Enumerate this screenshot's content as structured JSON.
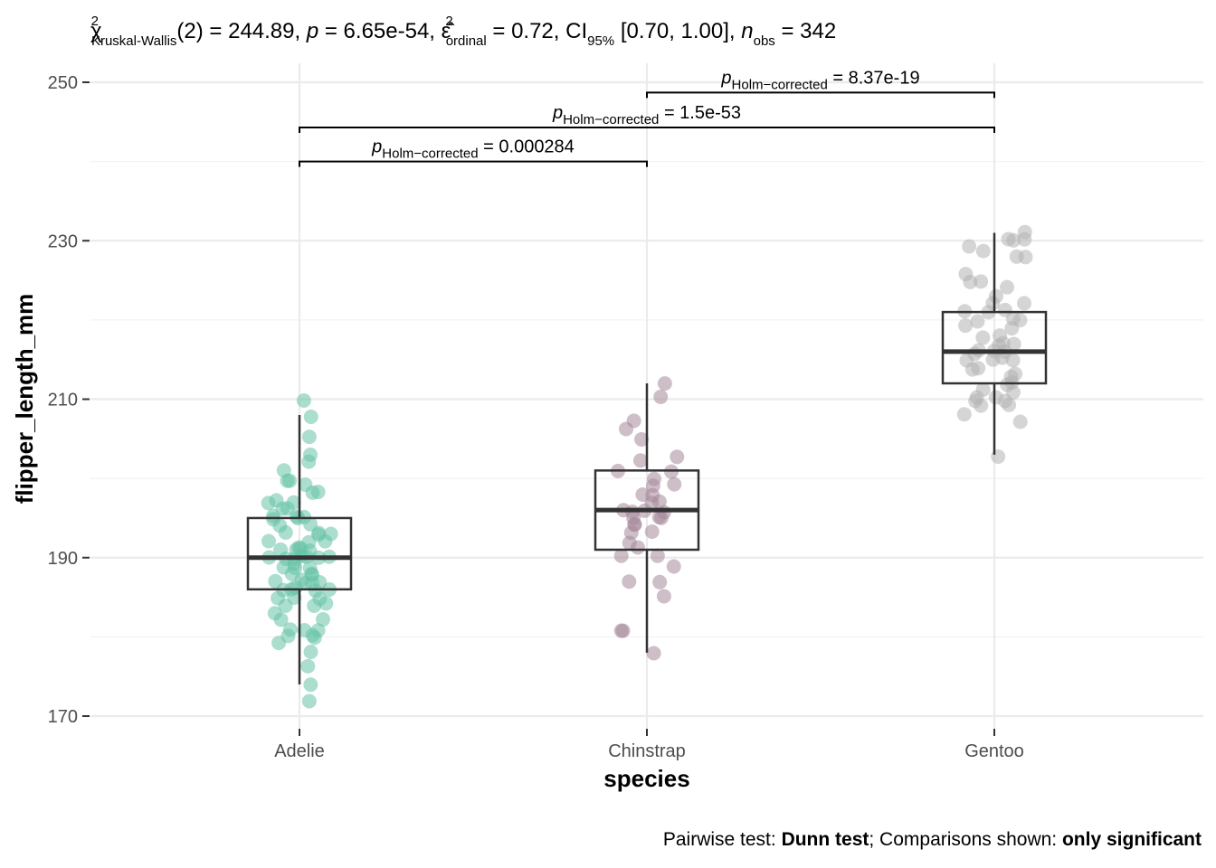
{
  "chart_data": {
    "type": "box-violin-jitter",
    "title_parts": {
      "stat_symbol": "χ",
      "stat_sup": "2",
      "stat_sub": "Kruskal-Wallis",
      "df_text": "(2) = 244.89, ",
      "p_symbol": "p",
      "p_text": " = 6.65e-54, ",
      "effect_symbol": "ε̂",
      "effect_sup": "2",
      "effect_sub": "ordinal",
      "effect_text": " = 0.72, CI",
      "ci_sub": "95%",
      "ci_text": " [0.70, 1.00], ",
      "n_symbol": "n",
      "n_sub": "obs",
      "n_text": " = 342"
    },
    "xlabel": "species",
    "ylabel": "flipper_length_mm",
    "ylim": [
      168,
      251
    ],
    "yticks": [
      170,
      190,
      210,
      230,
      250
    ],
    "categories": [
      "Adelie",
      "Chinstrap",
      "Gentoo"
    ],
    "colors": {
      "Adelie": "#66C2A5",
      "Chinstrap": "#A6889A",
      "Gentoo": "#B3B3B3",
      "box": "#333333"
    },
    "boxes": [
      {
        "name": "Adelie",
        "lower_whisker": 174,
        "q1": 186,
        "median": 190,
        "q3": 195,
        "upper_whisker": 208
      },
      {
        "name": "Chinstrap",
        "lower_whisker": 178,
        "q1": 191,
        "median": 196,
        "q3": 201,
        "upper_whisker": 212
      },
      {
        "name": "Gentoo",
        "lower_whisker": 203,
        "q1": 212,
        "median": 216,
        "q3": 221,
        "upper_whisker": 231
      }
    ],
    "points": {
      "Adelie": [
        172,
        176,
        178,
        179,
        180,
        180,
        181,
        181,
        182,
        182,
        183,
        184,
        184,
        184,
        185,
        185,
        185,
        186,
        186,
        186,
        186,
        187,
        187,
        187,
        187,
        188,
        188,
        188,
        189,
        189,
        189,
        189,
        190,
        190,
        190,
        190,
        190,
        190,
        191,
        191,
        191,
        191,
        192,
        192,
        192,
        193,
        193,
        193,
        194,
        194,
        195,
        195,
        195,
        195,
        196,
        196,
        197,
        197,
        198,
        198,
        199,
        200,
        201,
        202,
        203,
        205,
        208,
        210,
        174,
        180,
        181,
        186,
        187,
        190,
        191,
        193,
        195,
        197,
        200
      ],
      "Chinstrap": [
        178,
        181,
        181,
        185,
        187,
        187,
        189,
        190,
        191,
        192,
        193,
        193,
        194,
        195,
        195,
        195,
        196,
        196,
        196,
        196,
        197,
        197,
        198,
        198,
        199,
        200,
        201,
        201,
        202,
        203,
        205,
        206,
        207,
        210,
        212,
        190,
        194,
        199
      ],
      "Gentoo": [
        203,
        207,
        208,
        209,
        209,
        210,
        210,
        210,
        211,
        211,
        212,
        212,
        213,
        213,
        214,
        214,
        215,
        215,
        215,
        216,
        216,
        216,
        217,
        217,
        217,
        218,
        218,
        219,
        219,
        220,
        220,
        221,
        221,
        222,
        222,
        223,
        224,
        225,
        226,
        228,
        229,
        229,
        230,
        230,
        230,
        231,
        210,
        215,
        216,
        220,
        221,
        225,
        228
      ]
    },
    "comparisons": [
      {
        "group1": "Adelie",
        "group2": "Chinstrap",
        "y": 240,
        "p_symbol": "p",
        "p_sub": "Holm−corrected",
        "p_text": " = 0.000284"
      },
      {
        "group1": "Adelie",
        "group2": "Gentoo",
        "y": 244.3,
        "p_symbol": "p",
        "p_sub": "Holm−corrected",
        "p_text": " = 1.5e-53"
      },
      {
        "group1": "Chinstrap",
        "group2": "Gentoo",
        "y": 248.7,
        "p_symbol": "p",
        "p_sub": "Holm−corrected",
        "p_text": " = 8.37e-19"
      }
    ],
    "caption_parts": {
      "pre": "Pairwise test: ",
      "test": "Dunn test",
      "mid": "; Comparisons shown: ",
      "shown": "only significant"
    },
    "grid": true,
    "legend": "none"
  }
}
